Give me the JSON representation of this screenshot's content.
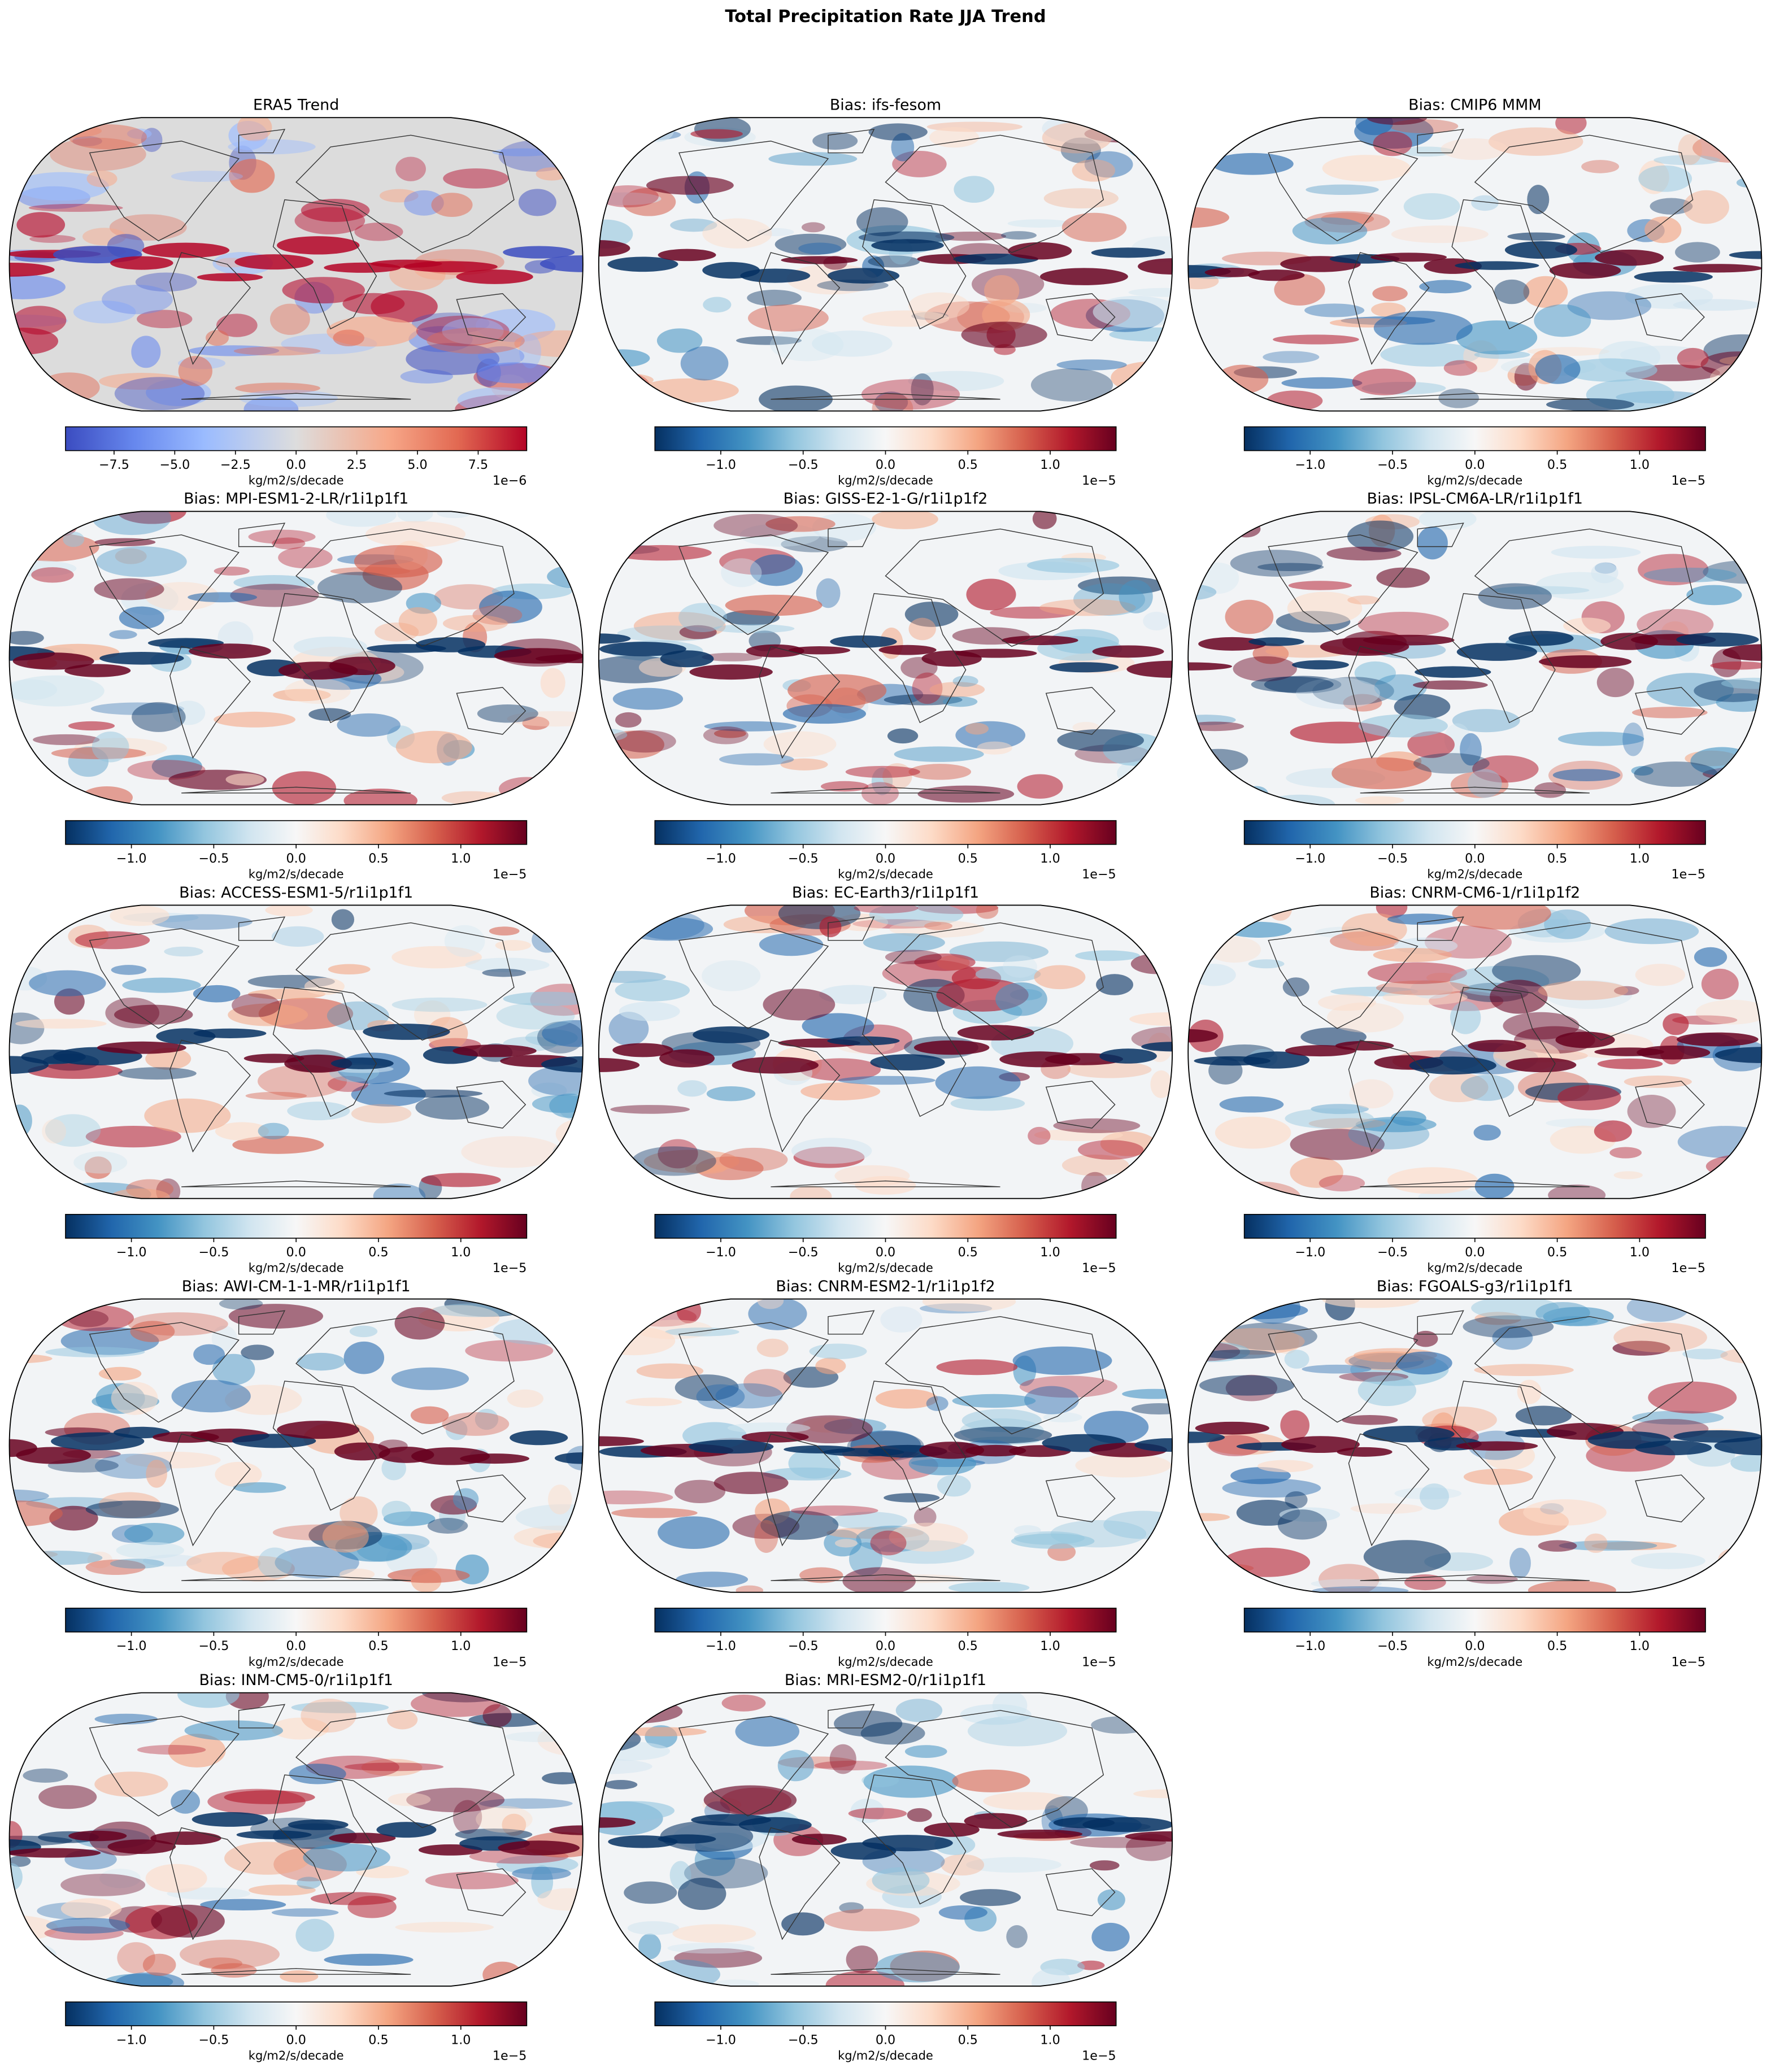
{
  "title": "Total Precipitation Rate JJA Trend",
  "panels": [
    {
      "title": "ERA5 Trend",
      "colorbar": {
        "colormap": "coolwarm",
        "label": "kg/m2/s/decade",
        "offset": "1e−6",
        "lim": [
          -9.5,
          9.5
        ],
        "ticks": [
          {
            "value": -7.5,
            "label": "−7.5"
          },
          {
            "value": -5,
            "label": "−5.0"
          },
          {
            "value": -2.5,
            "label": "−2.5"
          },
          {
            "value": 0,
            "label": "0.0"
          },
          2.5,
          {
            "value": 5,
            "label": "5.0"
          },
          7.5
        ]
      }
    },
    {
      "title": "Bias: ifs-fesom",
      "colorbar": {
        "colormap": "RdBu_r",
        "label": "kg/m2/s/decade",
        "offset": "1e−5",
        "lim": [
          -1.4,
          1.4
        ],
        "ticks": [
          {
            "value": -1,
            "label": "−1.0"
          },
          {
            "value": -0.5,
            "label": "−0.5"
          },
          {
            "value": 0,
            "label": "0.0"
          },
          0.5,
          {
            "value": 1,
            "label": "1.0"
          }
        ]
      }
    },
    {
      "title": "Bias: CMIP6 MMM",
      "colorbar": {
        "colormap": "RdBu_r",
        "label": "kg/m2/s/decade",
        "offset": "1e−5",
        "lim": [
          -1.4,
          1.4
        ],
        "ticks": [
          {
            "value": -1,
            "label": "−1.0"
          },
          {
            "value": -0.5,
            "label": "−0.5"
          },
          {
            "value": 0,
            "label": "0.0"
          },
          0.5,
          {
            "value": 1,
            "label": "1.0"
          }
        ]
      }
    },
    {
      "title": "Bias: MPI-ESM1-2-LR/r1i1p1f1",
      "colorbar": {
        "colormap": "RdBu_r",
        "label": "kg/m2/s/decade",
        "offset": "1e−5",
        "lim": [
          -1.4,
          1.4
        ],
        "ticks": [
          {
            "value": -1,
            "label": "−1.0"
          },
          {
            "value": -0.5,
            "label": "−0.5"
          },
          {
            "value": 0,
            "label": "0.0"
          },
          0.5,
          {
            "value": 1,
            "label": "1.0"
          }
        ]
      }
    },
    {
      "title": "Bias: GISS-E2-1-G/r1i1p1f2",
      "colorbar": {
        "colormap": "RdBu_r",
        "label": "kg/m2/s/decade",
        "offset": "1e−5",
        "lim": [
          -1.4,
          1.4
        ],
        "ticks": [
          {
            "value": -1,
            "label": "−1.0"
          },
          {
            "value": -0.5,
            "label": "−0.5"
          },
          {
            "value": 0,
            "label": "0.0"
          },
          0.5,
          {
            "value": 1,
            "label": "1.0"
          }
        ]
      }
    },
    {
      "title": "Bias: IPSL-CM6A-LR/r1i1p1f1",
      "colorbar": {
        "colormap": "RdBu_r",
        "label": "kg/m2/s/decade",
        "offset": "1e−5",
        "lim": [
          -1.4,
          1.4
        ],
        "ticks": [
          {
            "value": -1,
            "label": "−1.0"
          },
          {
            "value": -0.5,
            "label": "−0.5"
          },
          {
            "value": 0,
            "label": "0.0"
          },
          0.5,
          {
            "value": 1,
            "label": "1.0"
          }
        ]
      }
    },
    {
      "title": "Bias: ACCESS-ESM1-5/r1i1p1f1",
      "colorbar": {
        "colormap": "RdBu_r",
        "label": "kg/m2/s/decade",
        "offset": "1e−5",
        "lim": [
          -1.4,
          1.4
        ],
        "ticks": [
          {
            "value": -1,
            "label": "−1.0"
          },
          {
            "value": -0.5,
            "label": "−0.5"
          },
          {
            "value": 0,
            "label": "0.0"
          },
          0.5,
          {
            "value": 1,
            "label": "1.0"
          }
        ]
      }
    },
    {
      "title": "Bias: EC-Earth3/r1i1p1f1",
      "colorbar": {
        "colormap": "RdBu_r",
        "label": "kg/m2/s/decade",
        "offset": "1e−5",
        "lim": [
          -1.4,
          1.4
        ],
        "ticks": [
          {
            "value": -1,
            "label": "−1.0"
          },
          {
            "value": -0.5,
            "label": "−0.5"
          },
          {
            "value": 0,
            "label": "0.0"
          },
          0.5,
          {
            "value": 1,
            "label": "1.0"
          }
        ]
      }
    },
    {
      "title": "Bias: CNRM-CM6-1/r1i1p1f2",
      "colorbar": {
        "colormap": "RdBu_r",
        "label": "kg/m2/s/decade",
        "offset": "1e−5",
        "lim": [
          -1.4,
          1.4
        ],
        "ticks": [
          {
            "value": -1,
            "label": "−1.0"
          },
          {
            "value": -0.5,
            "label": "−0.5"
          },
          {
            "value": 0,
            "label": "0.0"
          },
          0.5,
          {
            "value": 1,
            "label": "1.0"
          }
        ]
      }
    },
    {
      "title": "Bias: AWI-CM-1-1-MR/r1i1p1f1",
      "colorbar": {
        "colormap": "RdBu_r",
        "label": "kg/m2/s/decade",
        "offset": "1e−5",
        "lim": [
          -1.4,
          1.4
        ],
        "ticks": [
          {
            "value": -1,
            "label": "−1.0"
          },
          {
            "value": -0.5,
            "label": "−0.5"
          },
          {
            "value": 0,
            "label": "0.0"
          },
          0.5,
          {
            "value": 1,
            "label": "1.0"
          }
        ]
      }
    },
    {
      "title": "Bias: CNRM-ESM2-1/r1i1p1f2",
      "colorbar": {
        "colormap": "RdBu_r",
        "label": "kg/m2/s/decade",
        "offset": "1e−5",
        "lim": [
          -1.4,
          1.4
        ],
        "ticks": [
          {
            "value": -1,
            "label": "−1.0"
          },
          {
            "value": -0.5,
            "label": "−0.5"
          },
          {
            "value": 0,
            "label": "0.0"
          },
          0.5,
          {
            "value": 1,
            "label": "1.0"
          }
        ]
      }
    },
    {
      "title": "Bias: FGOALS-g3/r1i1p1f1",
      "colorbar": {
        "colormap": "RdBu_r",
        "label": "kg/m2/s/decade",
        "offset": "1e−5",
        "lim": [
          -1.4,
          1.4
        ],
        "ticks": [
          {
            "value": -1,
            "label": "−1.0"
          },
          {
            "value": -0.5,
            "label": "−0.5"
          },
          {
            "value": 0,
            "label": "0.0"
          },
          0.5,
          {
            "value": 1,
            "label": "1.0"
          }
        ]
      }
    },
    {
      "title": "Bias: INM-CM5-0/r1i1p1f1",
      "colorbar": {
        "colormap": "RdBu_r",
        "label": "kg/m2/s/decade",
        "offset": "1e−5",
        "lim": [
          -1.4,
          1.4
        ],
        "ticks": [
          {
            "value": -1,
            "label": "−1.0"
          },
          {
            "value": -0.5,
            "label": "−0.5"
          },
          {
            "value": 0,
            "label": "0.0"
          },
          0.5,
          {
            "value": 1,
            "label": "1.0"
          }
        ]
      }
    },
    {
      "title": "Bias: MRI-ESM2-0/r1i1p1f1",
      "colorbar": {
        "colormap": "RdBu_r",
        "label": "kg/m2/s/decade",
        "offset": "1e−5",
        "lim": [
          -1.4,
          1.4
        ],
        "ticks": [
          {
            "value": -1,
            "label": "−1.0"
          },
          {
            "value": -0.5,
            "label": "−0.5"
          },
          {
            "value": 0,
            "label": "0.0"
          },
          0.5,
          {
            "value": 1,
            "label": "1.0"
          }
        ]
      }
    }
  ]
}
